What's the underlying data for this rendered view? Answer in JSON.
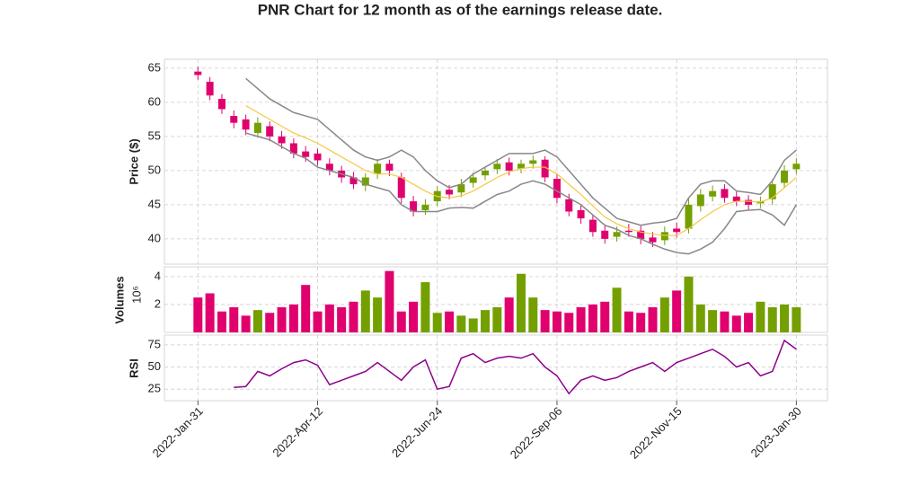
{
  "chart_data": {
    "type": "candlestick",
    "title": "PNR Chart for 12 month as of the earnings release date.",
    "price_label": "Price ($)",
    "volume_label": "Volumes",
    "volume_scale_label": "10⁶",
    "rsi_label": "RSI",
    "up_color": "#73a000",
    "down_color": "#e0006e",
    "ma_color": "#f5c842",
    "band_color": "#888888",
    "rsi_color": "#8b008b",
    "grid": true,
    "x": [
      0,
      5,
      10,
      15,
      20,
      25,
      30,
      35,
      40,
      45,
      50,
      55,
      60,
      65,
      70,
      75,
      80,
      85,
      90,
      95,
      100,
      105,
      110,
      115,
      120,
      125,
      130,
      135,
      140,
      145,
      150,
      155,
      160,
      165,
      170,
      175,
      180,
      185,
      190,
      195,
      200,
      205,
      210,
      215,
      220,
      225,
      230,
      235,
      240,
      245,
      250
    ],
    "xlim": [
      -14,
      263
    ],
    "xticks": [
      {
        "value": 0,
        "label": "2022-Jan-31"
      },
      {
        "value": 50,
        "label": "2022-Apr-12"
      },
      {
        "value": 100,
        "label": "2022-Jun-24"
      },
      {
        "value": 150,
        "label": "2022-Sep-06"
      },
      {
        "value": 200,
        "label": "2022-Nov-15"
      },
      {
        "value": 250,
        "label": "2023-Jan-30"
      }
    ],
    "open": [
      64.5,
      63,
      60.5,
      58,
      57.5,
      55.5,
      56.5,
      55,
      54,
      52.8,
      52.5,
      51,
      50,
      49,
      47.8,
      49.5,
      51,
      49,
      45.5,
      44.2,
      45.5,
      47.2,
      46.8,
      48.2,
      49.3,
      50.2,
      51.2,
      50.3,
      51,
      51.6,
      48.8,
      45.8,
      44.2,
      42.8,
      41.2,
      40.3,
      41.2,
      41.2,
      40.2,
      39.8,
      41.5,
      41.5,
      44.8,
      46.2,
      47.3,
      46.2,
      45.7,
      45.2,
      45.8,
      48.2,
      50.2
    ],
    "high": [
      65.2,
      63.7,
      61.2,
      58.8,
      58.2,
      57.8,
      57.2,
      55.8,
      54.7,
      53.6,
      53.2,
      51.8,
      50.7,
      49.8,
      49.6,
      51.7,
      51.6,
      49.7,
      46.3,
      45.8,
      47.7,
      47.9,
      48.8,
      49.7,
      50.6,
      51.7,
      51.9,
      51.6,
      52.2,
      52.1,
      49.5,
      46.6,
      44.9,
      43.6,
      41.9,
      41.8,
      42.2,
      41.9,
      41,
      41.8,
      42.4,
      45.9,
      47.3,
      47.8,
      48,
      46.9,
      46.4,
      46.2,
      48.7,
      50.8,
      51.8
    ],
    "low": [
      63.3,
      60.3,
      58.3,
      56.2,
      55.2,
      54.8,
      54.3,
      53.2,
      51.8,
      51.3,
      50.7,
      49.3,
      48.2,
      47.3,
      47,
      48.8,
      49.2,
      45.2,
      43.3,
      43.5,
      44.8,
      45.8,
      46.1,
      47.5,
      48.6,
      49.5,
      49.3,
      49.6,
      50.3,
      48.3,
      45.2,
      43.3,
      42.2,
      40.3,
      39.3,
      39.6,
      40.3,
      39.2,
      38.8,
      39.1,
      40.2,
      40.8,
      44,
      45.5,
      45.3,
      44.8,
      44.3,
      44.5,
      45,
      47.5,
      49.5
    ],
    "close": [
      64,
      61,
      59,
      57,
      56,
      57,
      55,
      54,
      52.5,
      52,
      51.5,
      50,
      49,
      48,
      49,
      51,
      50,
      46,
      44,
      45,
      47,
      46.5,
      48,
      49,
      50,
      51,
      50,
      51,
      51.5,
      49,
      46,
      44,
      43,
      41,
      40,
      41,
      41,
      40,
      39.5,
      41,
      41,
      45,
      46.5,
      47,
      46,
      45.5,
      45,
      45.5,
      48,
      50,
      51
    ],
    "ma": [
      null,
      null,
      null,
      null,
      59.5,
      58.5,
      57.5,
      56.5,
      55.5,
      54.8,
      54,
      53,
      52,
      51,
      50,
      49.5,
      49.5,
      49,
      48,
      47,
      46.2,
      46,
      46.3,
      47,
      48,
      49,
      49.8,
      50.3,
      50.5,
      50.5,
      49.5,
      48,
      46.5,
      44.8,
      43.2,
      42.2,
      41.5,
      41,
      40.7,
      40.5,
      40.5,
      41.5,
      42.8,
      44,
      45,
      45.5,
      45.5,
      45.4,
      46,
      47.5,
      49
    ],
    "bb_upper": [
      null,
      null,
      null,
      null,
      63.5,
      62,
      60.5,
      59.5,
      58.5,
      58,
      57.5,
      56,
      54.5,
      53,
      52,
      51.5,
      52,
      53,
      52,
      50,
      48.5,
      47.5,
      48,
      49.5,
      50.5,
      51.5,
      52.5,
      52.5,
      52.5,
      53,
      52,
      50,
      48,
      46,
      44.5,
      43,
      42.5,
      42,
      42.3,
      42.5,
      43,
      46,
      48,
      48.5,
      48.5,
      47,
      46.8,
      46.5,
      48.5,
      51.5,
      53
    ],
    "bb_lower": [
      null,
      null,
      null,
      null,
      55.5,
      55,
      54.5,
      53.5,
      52.5,
      51.8,
      50.5,
      50,
      49.5,
      49,
      48,
      47.5,
      47,
      45,
      44,
      44,
      44,
      44.5,
      44.6,
      44.5,
      45.5,
      46.5,
      47,
      48,
      48.5,
      48,
      47,
      46,
      45,
      43.5,
      42,
      41.4,
      40.5,
      40,
      39.2,
      38.5,
      38,
      37.8,
      38.5,
      39.5,
      41.5,
      44,
      44.2,
      44.3,
      43.5,
      42,
      45
    ],
    "ylim": [
      36.3,
      66.3
    ],
    "yticks": [
      40,
      45,
      50,
      55,
      60,
      65
    ],
    "volume": [
      2.5,
      2.8,
      1.5,
      1.8,
      1.2,
      1.6,
      1.4,
      1.8,
      2,
      3.4,
      1.5,
      2,
      1.8,
      2.2,
      3,
      2.5,
      4.4,
      1.5,
      2.2,
      3.6,
      1.4,
      1.5,
      1.2,
      1,
      1.6,
      1.8,
      2.5,
      4.2,
      2.5,
      1.6,
      1.5,
      1.4,
      1.8,
      2,
      2.2,
      3.2,
      1.5,
      1.4,
      1.8,
      2.5,
      3,
      4,
      2,
      1.6,
      1.5,
      1.2,
      1.4,
      2.2,
      1.8,
      2,
      1.8
    ],
    "volume_ylim": [
      0,
      4.7
    ],
    "volume_yticks": [
      2,
      4
    ],
    "rsi": [
      null,
      null,
      null,
      27,
      28,
      45,
      40,
      48,
      55,
      58,
      52,
      30,
      35,
      40,
      45,
      55,
      45,
      35,
      50,
      58,
      25,
      28,
      60,
      65,
      55,
      60,
      62,
      60,
      65,
      50,
      40,
      20,
      35,
      40,
      35,
      38,
      45,
      50,
      55,
      45,
      55,
      60,
      65,
      70,
      62,
      50,
      55,
      40,
      45,
      80,
      70
    ],
    "rsi_ylim": [
      12,
      86
    ],
    "rsi_yticks": [
      25,
      50,
      75
    ]
  }
}
